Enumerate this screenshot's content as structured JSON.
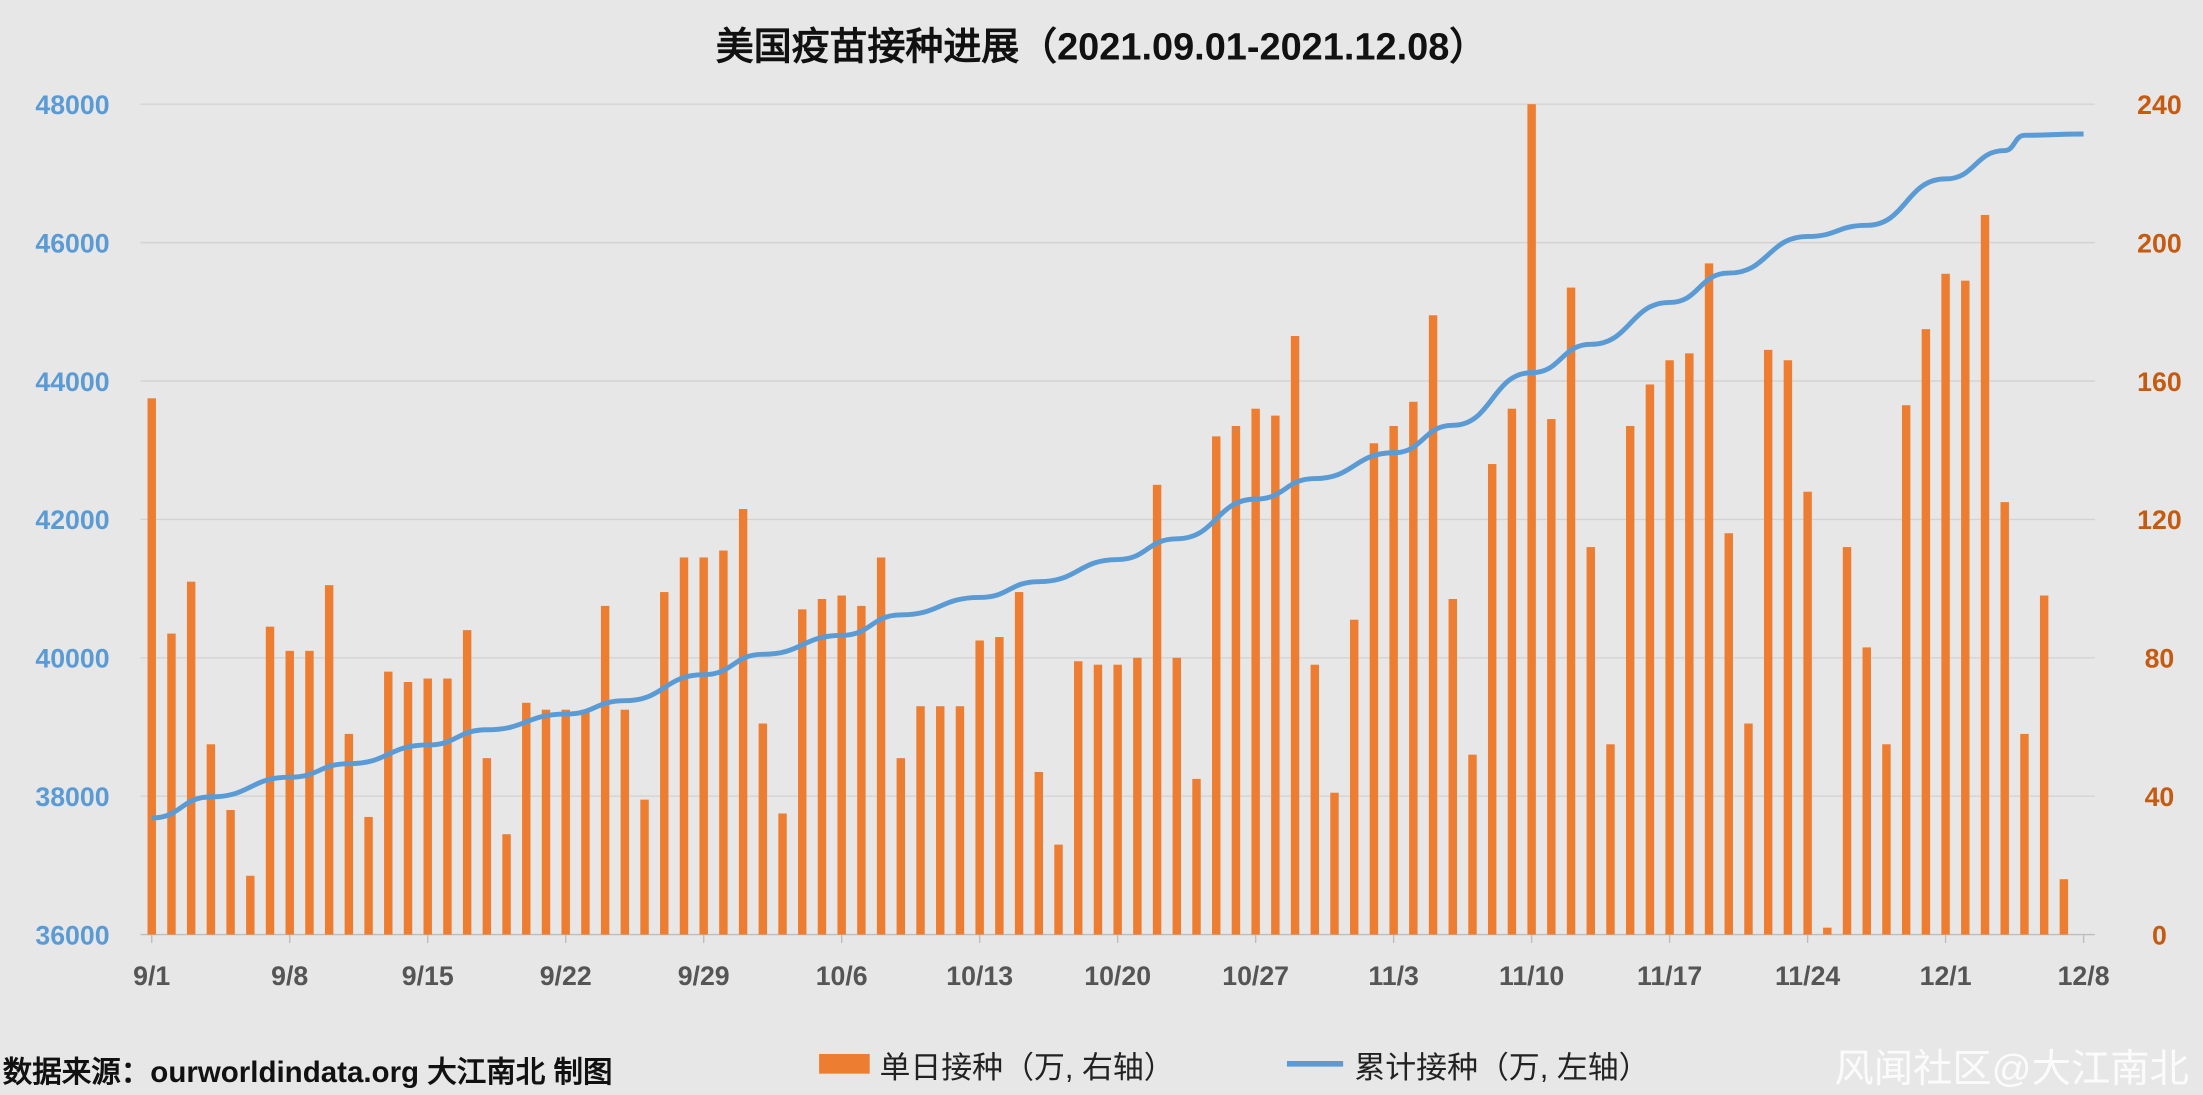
{
  "chart_data": {
    "type": "bar+line",
    "title": "美国疫苗接种进展（2021.09.01-2021.12.08）",
    "x_start": "2021-09-01",
    "x_tick_labels": [
      "9/1",
      "9/8",
      "9/15",
      "9/22",
      "9/29",
      "10/6",
      "10/13",
      "10/20",
      "10/27",
      "11/3",
      "11/10",
      "11/17",
      "11/24",
      "12/1",
      "12/8"
    ],
    "left_axis": {
      "ticks": [
        36000,
        38000,
        40000,
        42000,
        44000,
        46000,
        48000
      ],
      "range": [
        36000,
        48000
      ],
      "color": "#5b9bd5"
    },
    "right_axis": {
      "ticks": [
        0,
        40,
        80,
        120,
        160,
        200,
        240
      ],
      "range": [
        0,
        240
      ],
      "color": "#c55a11"
    },
    "grid": true,
    "legend_position": "bottom",
    "series": [
      {
        "name": "单日接种（万, 右轴）",
        "type": "bar",
        "axis": "right",
        "color": "#ed7d31",
        "values": [
          155,
          87,
          102,
          55,
          36,
          17,
          89,
          82,
          82,
          101,
          58,
          34,
          76,
          73,
          74,
          74,
          88,
          51,
          29,
          67,
          65,
          65,
          65,
          95,
          65,
          39,
          99,
          109,
          109,
          111,
          123,
          61,
          35,
          94,
          97,
          98,
          95,
          109,
          51,
          66,
          66,
          66,
          85,
          86,
          99,
          47,
          26,
          79,
          78,
          78,
          80,
          130,
          80,
          45,
          144,
          147,
          152,
          150,
          173,
          78,
          41,
          91,
          142,
          147,
          154,
          179,
          97,
          52,
          136,
          152,
          240,
          149,
          187,
          112,
          55,
          147,
          159,
          166,
          168,
          194,
          116,
          61,
          169,
          166,
          128,
          2,
          112,
          83,
          55,
          153,
          175,
          191,
          189,
          208,
          125,
          58,
          98,
          16
        ]
      },
      {
        "name": "累计接种（万, 左轴）",
        "type": "line",
        "axis": "left",
        "color": "#5b9bd5",
        "day_index": [
          0,
          3,
          7,
          10,
          14,
          17,
          21,
          24,
          28,
          31,
          35,
          38,
          42,
          45,
          49,
          52,
          56,
          59,
          63,
          66,
          70,
          73,
          77,
          80,
          84,
          87,
          91,
          94,
          95,
          98
        ],
        "values": [
          37685,
          37990,
          38274,
          38470,
          38740,
          38960,
          39187,
          39380,
          39756,
          40050,
          40324,
          40620,
          40872,
          41100,
          41420,
          41720,
          42293,
          42590,
          42963,
          43360,
          44120,
          44530,
          45135,
          45560,
          46089,
          46250,
          46921,
          47330,
          47551,
          47570
        ]
      }
    ],
    "source_note": "数据来源：ourworldindata.org 大江南北 制图",
    "watermark": "风闻社区@大江南北"
  }
}
